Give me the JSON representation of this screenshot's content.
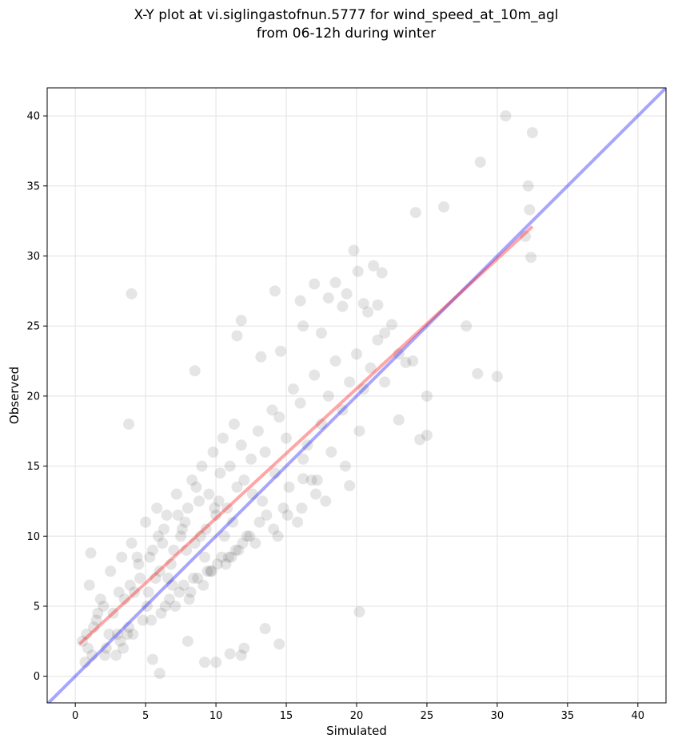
{
  "chart_data": {
    "type": "scatter",
    "title": "X-Y plot at vi.siglingastofnun.5777 for wind_speed_at_10m_agl",
    "subtitle": "from 06-12h during winter",
    "xlabel": "Simulated",
    "ylabel": "Observed",
    "xlim": [
      -2,
      42
    ],
    "ylim": [
      -1.9,
      42
    ],
    "xticks": [
      0,
      5,
      10,
      15,
      20,
      25,
      30,
      35,
      40
    ],
    "yticks": [
      0,
      5,
      10,
      15,
      20,
      25,
      30,
      35,
      40
    ],
    "grid": true,
    "colors": {
      "points": "#000000",
      "identity_line": "#0000ff",
      "fit_line": "#ff0000",
      "grid": "#e6e6e6"
    },
    "identity_line": {
      "x": [
        -2,
        42
      ],
      "y": [
        -2,
        42
      ]
    },
    "fit_line": {
      "x": [
        0.3,
        32.5
      ],
      "y": [
        2.3,
        32.1
      ]
    },
    "series": [
      {
        "type": "scatter",
        "x": [
          0.5,
          0.8,
          1.0,
          1.2,
          1.5,
          2.0,
          2.2,
          2.5,
          3.0,
          3.3,
          3.5,
          3.8,
          4.0,
          4.2,
          4.5,
          5.0,
          5.2,
          5.5,
          5.8,
          6.0,
          6.3,
          6.5,
          6.8,
          7.0,
          7.2,
          7.5,
          7.8,
          8.0,
          8.3,
          8.5,
          8.8,
          9.0,
          9.3,
          9.5,
          9.8,
          10.0,
          10.3,
          10.5,
          10.8,
          11.0,
          11.3,
          11.5,
          11.8,
          12.0,
          12.5,
          13.0,
          13.5,
          14.0,
          14.5,
          15.0,
          15.5,
          16.0,
          16.5,
          17.0,
          17.5,
          18.0,
          18.5,
          19.0,
          19.5,
          20.0,
          20.5,
          21.0,
          21.5,
          22.0,
          23.0,
          24.0,
          25.0,
          0.7,
          1.3,
          1.8,
          2.7,
          3.2,
          3.9,
          4.6,
          5.3,
          5.9,
          6.6,
          7.3,
          7.9,
          8.6,
          9.2,
          9.9,
          10.6,
          11.2,
          11.9,
          12.6,
          13.3,
          14.2,
          15.2,
          16.2,
          17.2,
          18.2,
          19.2,
          20.2,
          0.9,
          1.6,
          2.4,
          3.1,
          3.7,
          4.4,
          5.1,
          5.7,
          6.2,
          6.9,
          7.6,
          8.2,
          8.9,
          9.6,
          10.2,
          10.9,
          11.6,
          12.2,
          13.1,
          14.1,
          15.1,
          16.1,
          17.1,
          2.9,
          4.8,
          6.4,
          7.4,
          8.4,
          9.4,
          10.4,
          11.4,
          12.4,
          13.6,
          14.8,
          16.8,
          1.1,
          2.1,
          3.4,
          4.1,
          5.4,
          6.1,
          6.7,
          7.1,
          7.7,
          8.1,
          8.7,
          9.1,
          9.7,
          10.1,
          10.7,
          11.1,
          12.8,
          14.4,
          15.8,
          17.8,
          4.0,
          3.8,
          8.5,
          11.5,
          11.8,
          13.2,
          14.2,
          14.6,
          16.0,
          16.2,
          17.0,
          17.5,
          18.0,
          18.5,
          19.0,
          19.3,
          19.8,
          20.1,
          20.5,
          20.8,
          21.2,
          21.5,
          21.8,
          22.0,
          22.5,
          23.0,
          23.5,
          24.2,
          24.5,
          25.0,
          26.2,
          27.8,
          28.6,
          28.8,
          30.0,
          30.6,
          32.0,
          32.2,
          32.3,
          32.4,
          32.5,
          20.2,
          19.5,
          16.2,
          11.8,
          10.0,
          9.2,
          11.0,
          12.0,
          13.5,
          14.5,
          8.0,
          6.0,
          5.5
        ],
        "y": [
          2.5,
          3.0,
          6.5,
          1.5,
          4.0,
          5.0,
          2.0,
          7.5,
          3.0,
          8.5,
          5.5,
          3.5,
          9.5,
          6.0,
          8.0,
          11.0,
          6.0,
          9.0,
          12.0,
          7.5,
          10.5,
          11.5,
          8.0,
          9.0,
          13.0,
          10.0,
          11.0,
          12.0,
          14.0,
          9.5,
          12.5,
          15.0,
          10.5,
          13.0,
          16.0,
          11.5,
          14.5,
          17.0,
          12.0,
          15.0,
          18.0,
          13.5,
          16.5,
          14.0,
          15.5,
          17.5,
          16.0,
          19.0,
          18.5,
          17.0,
          20.5,
          19.5,
          16.5,
          21.5,
          18.0,
          20.0,
          22.5,
          19.0,
          21.0,
          23.0,
          20.5,
          22.0,
          24.0,
          21.0,
          23.0,
          22.5,
          20.0,
          1.0,
          3.5,
          5.5,
          4.5,
          2.5,
          6.5,
          7.0,
          8.5,
          10.0,
          7.0,
          11.5,
          9.0,
          13.5,
          8.5,
          12.0,
          10.0,
          11.0,
          9.5,
          13.0,
          12.5,
          14.5,
          13.5,
          15.5,
          14.0,
          16.0,
          15.0,
          17.5,
          2.0,
          4.5,
          3.0,
          6.0,
          3.0,
          8.5,
          5.0,
          7.0,
          9.5,
          6.5,
          10.5,
          6.0,
          10.0,
          7.5,
          12.5,
          8.5,
          9.0,
          10.0,
          11.0,
          10.5,
          11.5,
          12.0,
          13.0,
          1.5,
          4.0,
          5.0,
          6.0,
          7.0,
          7.5,
          8.5,
          9.0,
          10.0,
          11.5,
          12.0,
          14.0,
          8.8,
          1.5,
          2.0,
          3.0,
          4.0,
          4.5,
          5.5,
          5.0,
          6.5,
          5.5,
          7.0,
          6.5,
          7.5,
          8.0,
          8.0,
          8.5,
          9.5,
          10.0,
          11.0,
          12.5,
          27.3,
          18.0,
          21.8,
          24.3,
          25.4,
          22.8,
          27.5,
          23.2,
          26.8,
          25.0,
          28.0,
          24.5,
          27.0,
          28.1,
          26.4,
          27.3,
          30.4,
          28.9,
          26.6,
          26.0,
          29.3,
          26.5,
          28.8,
          24.5,
          25.1,
          18.3,
          22.4,
          33.1,
          16.9,
          17.2,
          33.5,
          25.0,
          21.6,
          36.7,
          21.4,
          40.0,
          31.4,
          35.0,
          33.3,
          29.9,
          38.8,
          4.6,
          13.6,
          14.1,
          1.5,
          1.0,
          1.0,
          1.6,
          2.0,
          3.4,
          2.3,
          2.5,
          0.2,
          1.2
        ]
      }
    ]
  }
}
